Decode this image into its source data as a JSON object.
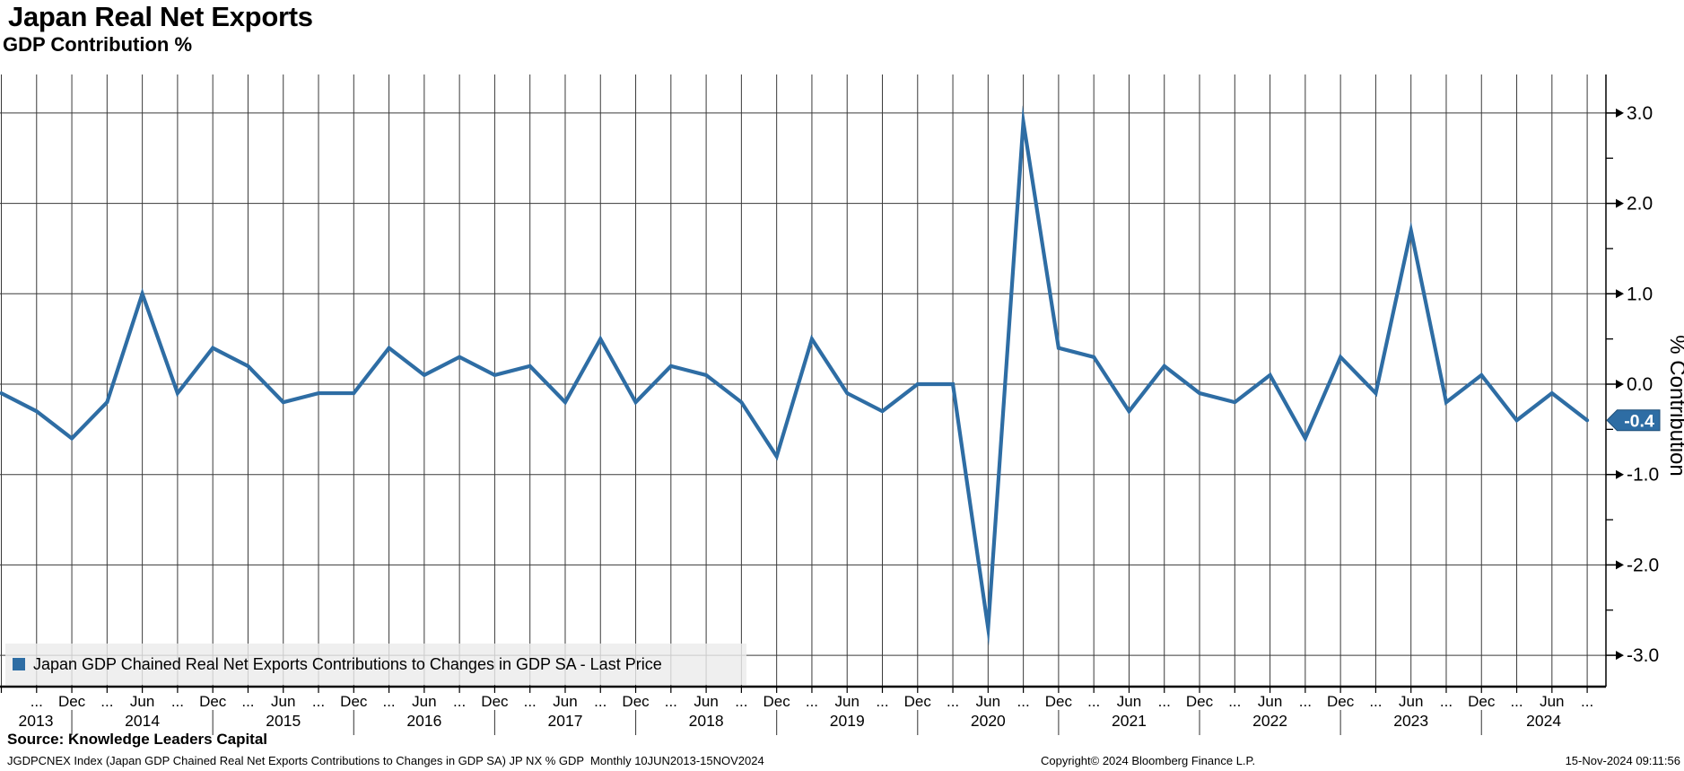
{
  "header": {
    "title": "Japan Real Net Exports",
    "subtitle": "GDP Contribution %"
  },
  "legend": {
    "series_label": "Japan GDP Chained Real Net Exports Contributions to Changes in GDP SA - Last Price",
    "marker_color": "#2e6da4"
  },
  "footer": {
    "source": "Source: Knowledge Leaders Capital",
    "ticker_info": "JGDPCNEX Index (Japan GDP Chained Real Net Exports Contributions to Changes in GDP SA) JP NX % GDP  Monthly 10JUN2013-15NOV2024",
    "copyright": "Copyright© 2024 Bloomberg Finance L.P.",
    "timestamp": "15-Nov-2024 09:11:56"
  },
  "chart_data": {
    "type": "line",
    "title": "Japan Real Net Exports",
    "subtitle": "GDP Contribution %",
    "series_name": "Japan GDP Chained Real Net Exports Contributions to Changes in GDP SA - Last Price",
    "frequency": "quarterly",
    "quarters": [
      "2013-Q2",
      "2013-Q3",
      "2013-Q4",
      "2014-Q1",
      "2014-Q2",
      "2014-Q3",
      "2014-Q4",
      "2015-Q1",
      "2015-Q2",
      "2015-Q3",
      "2015-Q4",
      "2016-Q1",
      "2016-Q2",
      "2016-Q3",
      "2016-Q4",
      "2017-Q1",
      "2017-Q2",
      "2017-Q3",
      "2017-Q4",
      "2018-Q1",
      "2018-Q2",
      "2018-Q3",
      "2018-Q4",
      "2019-Q1",
      "2019-Q2",
      "2019-Q3",
      "2019-Q4",
      "2020-Q1",
      "2020-Q2",
      "2020-Q3",
      "2020-Q4",
      "2021-Q1",
      "2021-Q2",
      "2021-Q3",
      "2021-Q4",
      "2022-Q1",
      "2022-Q2",
      "2022-Q3",
      "2022-Q4",
      "2023-Q1",
      "2023-Q2",
      "2023-Q3",
      "2023-Q4",
      "2024-Q1",
      "2024-Q2",
      "2024-Q3"
    ],
    "values": [
      -0.1,
      -0.3,
      -0.6,
      -0.2,
      1.0,
      -0.1,
      0.4,
      0.2,
      -0.2,
      -0.1,
      -0.1,
      0.4,
      0.1,
      0.3,
      0.1,
      0.2,
      -0.2,
      0.5,
      -0.2,
      0.2,
      0.1,
      -0.2,
      -0.8,
      0.5,
      -0.1,
      -0.3,
      0.0,
      0.0,
      -2.7,
      2.9,
      0.4,
      0.3,
      -0.3,
      0.2,
      -0.1,
      -0.2,
      0.1,
      -0.6,
      0.3,
      -0.1,
      1.7,
      -0.2,
      0.1,
      -0.4,
      -0.1,
      -0.4
    ],
    "x_tick_labels": [
      "...",
      "Dec",
      "...",
      "Jun",
      "...",
      "Dec",
      "...",
      "Jun",
      "...",
      "Dec",
      "...",
      "Jun",
      "...",
      "Dec",
      "...",
      "Jun",
      "...",
      "Dec",
      "...",
      "Jun",
      "...",
      "Dec",
      "...",
      "Jun",
      "...",
      "Dec",
      "...",
      "Jun",
      "...",
      "Dec",
      "...",
      "Jun",
      "...",
      "Dec",
      "...",
      "Jun",
      "...",
      "Dec",
      "...",
      "Jun",
      "...",
      "Dec",
      "...",
      "Jun",
      "..."
    ],
    "years": [
      "2013",
      "2014",
      "2015",
      "2016",
      "2017",
      "2018",
      "2019",
      "2020",
      "2021",
      "2022",
      "2023",
      "2024"
    ],
    "y_ticks": [
      "3.0",
      "2.0",
      "1.0",
      "0.0",
      "-1.0",
      "-2.0",
      "-3.0"
    ],
    "ylabel": "% Contribution",
    "ylim": [
      -3.35,
      3.42
    ],
    "grid": true,
    "legend_position": "bottom-left",
    "last_price_label": "-0.4",
    "line_color": "#2e6da4",
    "badge_color": "#2e6da4"
  }
}
